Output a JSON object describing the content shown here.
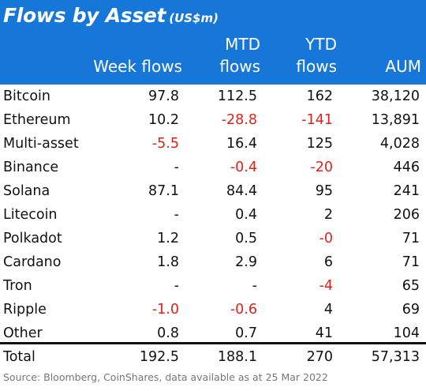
{
  "header": {
    "title": "Flows by Asset",
    "unit": "(US$m)",
    "columns": {
      "week": "Week flows",
      "mtd_line1": "MTD",
      "mtd_line2": "flows",
      "ytd_line1": "YTD",
      "ytd_line2": "flows",
      "aum": "AUM"
    }
  },
  "colors": {
    "header_bg": "#1677d8",
    "header_text": "#ffffff",
    "negative": "#e0201b",
    "text": "#111111",
    "source_text": "#777777"
  },
  "rows": [
    {
      "asset": "Bitcoin",
      "week": "97.8",
      "mtd": "112.5",
      "ytd": "162",
      "aum": "38,120"
    },
    {
      "asset": "Ethereum",
      "week": "10.2",
      "mtd": "-28.8",
      "ytd": "-141",
      "aum": "13,891"
    },
    {
      "asset": "Multi-asset",
      "week": "-5.5",
      "mtd": "16.4",
      "ytd": "125",
      "aum": "4,028"
    },
    {
      "asset": "Binance",
      "week": "-",
      "mtd": "-0.4",
      "ytd": "-20",
      "aum": "446"
    },
    {
      "asset": "Solana",
      "week": "87.1",
      "mtd": "84.4",
      "ytd": "95",
      "aum": "241"
    },
    {
      "asset": "Litecoin",
      "week": "-",
      "mtd": "0.4",
      "ytd": "2",
      "aum": "206"
    },
    {
      "asset": "Polkadot",
      "week": "1.2",
      "mtd": "0.5",
      "ytd": "-0",
      "aum": "71"
    },
    {
      "asset": "Cardano",
      "week": "1.8",
      "mtd": "2.9",
      "ytd": "6",
      "aum": "71"
    },
    {
      "asset": "Tron",
      "week": "-",
      "mtd": "-",
      "ytd": "-4",
      "aum": "65"
    },
    {
      "asset": "Ripple",
      "week": "-1.0",
      "mtd": "-0.6",
      "ytd": "4",
      "aum": "69"
    },
    {
      "asset": "Other",
      "week": "0.8",
      "mtd": "0.7",
      "ytd": "41",
      "aum": "104"
    }
  ],
  "total": {
    "asset": "Total",
    "week": "192.5",
    "mtd": "188.1",
    "ytd": "270",
    "aum": "57,313"
  },
  "source": "Source: Bloomberg, CoinShares, data available as at 25 Mar 2022"
}
